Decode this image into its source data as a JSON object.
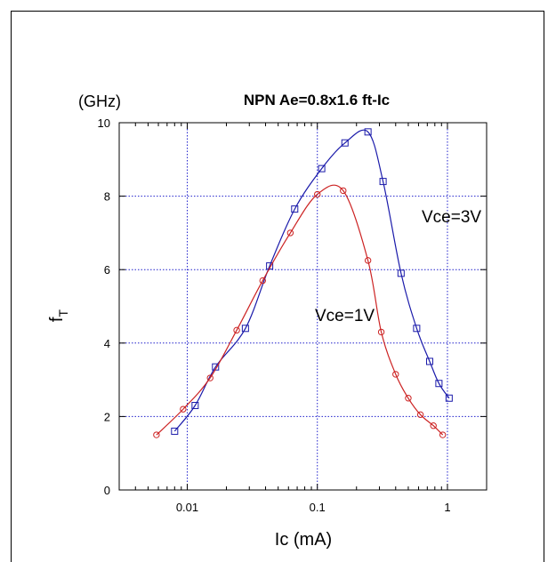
{
  "chart_data": {
    "type": "line",
    "title": "NPN Ae=0.8x1.6 ft-Ic",
    "y_unit": "(GHz)",
    "xlabel": "Ic (mA)",
    "ylabel_main": "f",
    "ylabel_sub": "T",
    "x_scale": "log",
    "xlim": [
      0.003,
      2
    ],
    "ylim": [
      0,
      10
    ],
    "x_ticks": [
      {
        "value": 0.01,
        "label": "0.01"
      },
      {
        "value": 0.1,
        "label": "0.1"
      },
      {
        "value": 1,
        "label": "1"
      }
    ],
    "y_ticks": [
      {
        "value": 0,
        "label": "0"
      },
      {
        "value": 2,
        "label": "2"
      },
      {
        "value": 4,
        "label": "4"
      },
      {
        "value": 6,
        "label": "6"
      },
      {
        "value": 8,
        "label": "8"
      },
      {
        "value": 10,
        "label": "10"
      }
    ],
    "grid": true,
    "series": [
      {
        "name": "Vce=3V",
        "color": "#1a1aaa",
        "marker": "square",
        "x": [
          0.008,
          0.0115,
          0.0165,
          0.028,
          0.043,
          0.067,
          0.108,
          0.163,
          0.245,
          0.32,
          0.44,
          0.58,
          0.73,
          0.86,
          1.03
        ],
        "y": [
          1.6,
          2.3,
          3.35,
          4.4,
          6.1,
          7.65,
          8.75,
          9.45,
          9.75,
          8.4,
          5.9,
          4.4,
          3.5,
          2.9,
          2.5
        ]
      },
      {
        "name": "Vce=1V",
        "color": "#cc2222",
        "marker": "circle",
        "x": [
          0.0058,
          0.0093,
          0.015,
          0.024,
          0.038,
          0.062,
          0.1,
          0.158,
          0.245,
          0.31,
          0.4,
          0.5,
          0.62,
          0.78,
          0.92
        ],
        "y": [
          1.5,
          2.2,
          3.05,
          4.35,
          5.7,
          7.0,
          8.05,
          8.15,
          6.25,
          4.3,
          3.15,
          2.5,
          2.05,
          1.75,
          1.5
        ]
      }
    ],
    "annotations": [
      {
        "text": "Vce=3V",
        "x": 0.43,
        "y": 7.4
      },
      {
        "text": "Vce=1V",
        "x": 0.088,
        "y": 4.8
      }
    ]
  }
}
